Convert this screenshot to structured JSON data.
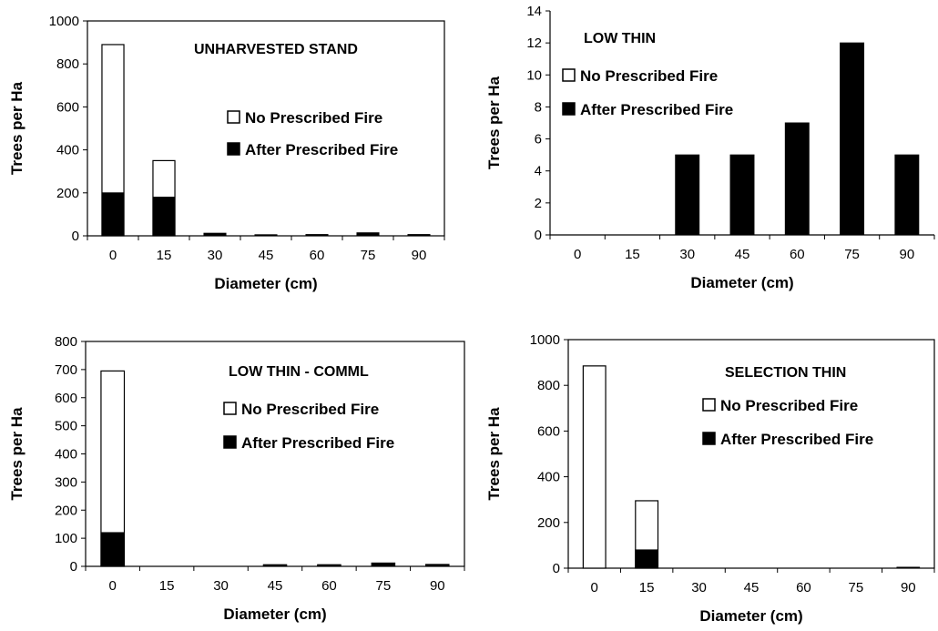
{
  "chart_data": [
    {
      "type": "bar",
      "title": "UNHARVESTED STAND",
      "xlabel": "Diameter  (cm)",
      "ylabel": "Trees per Ha",
      "categories": [
        "0",
        "15",
        "30",
        "45",
        "60",
        "75",
        "90"
      ],
      "ylim": [
        0,
        1000
      ],
      "yticks": [
        "0",
        "200",
        "400",
        "600",
        "800",
        "1000"
      ],
      "series": [
        {
          "name": "No Prescribed Fire",
          "values": [
            890,
            350,
            12,
            5,
            6,
            14,
            6
          ]
        },
        {
          "name": "After Prescribed Fire",
          "values": [
            200,
            180,
            12,
            5,
            6,
            14,
            6
          ]
        }
      ],
      "legend_position": "right",
      "grid": false
    },
    {
      "type": "bar",
      "title": "LOW THIN",
      "xlabel": "Diameter  (cm)",
      "ylabel": "Trees per Ha",
      "categories": [
        "0",
        "15",
        "30",
        "45",
        "60",
        "75",
        "90"
      ],
      "ylim": [
        0,
        14
      ],
      "yticks": [
        "0",
        "2",
        "4",
        "6",
        "8",
        "10",
        "12",
        "14"
      ],
      "series": [
        {
          "name": "No Prescribed Fire",
          "values": [
            0,
            0,
            5,
            5,
            7,
            12,
            5
          ]
        },
        {
          "name": "After Prescribed Fire",
          "values": [
            0,
            0,
            5,
            5,
            7,
            12,
            5
          ]
        }
      ],
      "legend_position": "top-left",
      "grid": false
    },
    {
      "type": "bar",
      "title": "LOW THIN - COMML",
      "xlabel": "Diameter  (cm)",
      "ylabel": "Trees per Ha",
      "categories": [
        "0",
        "15",
        "30",
        "45",
        "60",
        "75",
        "90"
      ],
      "ylim": [
        0,
        800
      ],
      "yticks": [
        "0",
        "100",
        "200",
        "300",
        "400",
        "500",
        "600",
        "700",
        "800"
      ],
      "series": [
        {
          "name": "No Prescribed Fire",
          "values": [
            695,
            0,
            0,
            6,
            6,
            12,
            7
          ]
        },
        {
          "name": "After Prescribed Fire",
          "values": [
            120,
            0,
            0,
            6,
            6,
            12,
            7
          ]
        }
      ],
      "legend_position": "right",
      "grid": false
    },
    {
      "type": "bar",
      "title": "SELECTION THIN",
      "xlabel": "Diameter  (cm)",
      "ylabel": "Trees per Ha",
      "categories": [
        "0",
        "15",
        "30",
        "45",
        "60",
        "75",
        "90"
      ],
      "ylim": [
        0,
        1000
      ],
      "yticks": [
        "0",
        "200",
        "400",
        "600",
        "800",
        "1000"
      ],
      "series": [
        {
          "name": "No Prescribed Fire",
          "values": [
            885,
            295,
            0,
            0,
            0,
            0,
            4
          ]
        },
        {
          "name": "After Prescribed Fire",
          "values": [
            0,
            80,
            0,
            0,
            0,
            0,
            4
          ]
        }
      ],
      "legend_position": "right",
      "grid": false
    }
  ]
}
